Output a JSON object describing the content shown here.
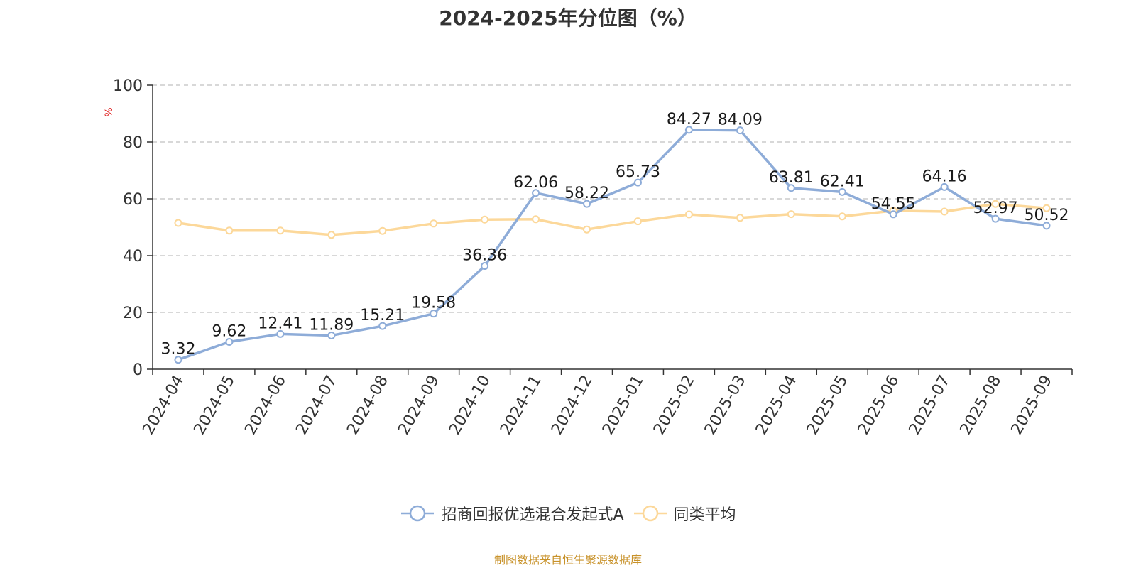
{
  "chart_data": {
    "type": "line",
    "title": "2024-2025年分位图（%）",
    "ylabel": "%",
    "ylim": [
      0,
      100
    ],
    "yticks": [
      0,
      20,
      40,
      60,
      80,
      100
    ],
    "grid": true,
    "legend_position": "bottom",
    "categories": [
      "2024-04",
      "2024-05",
      "2024-06",
      "2024-07",
      "2024-08",
      "2024-09",
      "2024-10",
      "2024-11",
      "2024-12",
      "2025-01",
      "2025-02",
      "2025-03",
      "2025-04",
      "2025-05",
      "2025-06",
      "2025-07",
      "2025-08",
      "2025-09"
    ],
    "series": [
      {
        "name": "招商回报优选混合发起式A",
        "color": "#8eacd8",
        "show_labels": true,
        "values": [
          3.32,
          9.62,
          12.41,
          11.89,
          15.21,
          19.58,
          36.36,
          62.06,
          58.22,
          65.73,
          84.27,
          84.09,
          63.81,
          62.41,
          54.55,
          64.16,
          52.97,
          50.52
        ]
      },
      {
        "name": "同类平均",
        "color": "#fcd89a",
        "show_labels": false,
        "values": [
          51.5,
          48.8,
          48.8,
          47.3,
          48.7,
          51.3,
          52.7,
          52.8,
          49.2,
          52.1,
          54.5,
          53.3,
          54.6,
          53.8,
          55.8,
          55.5,
          58.2,
          56.7
        ]
      }
    ]
  },
  "source": "制图数据来自恒生聚源数据库"
}
